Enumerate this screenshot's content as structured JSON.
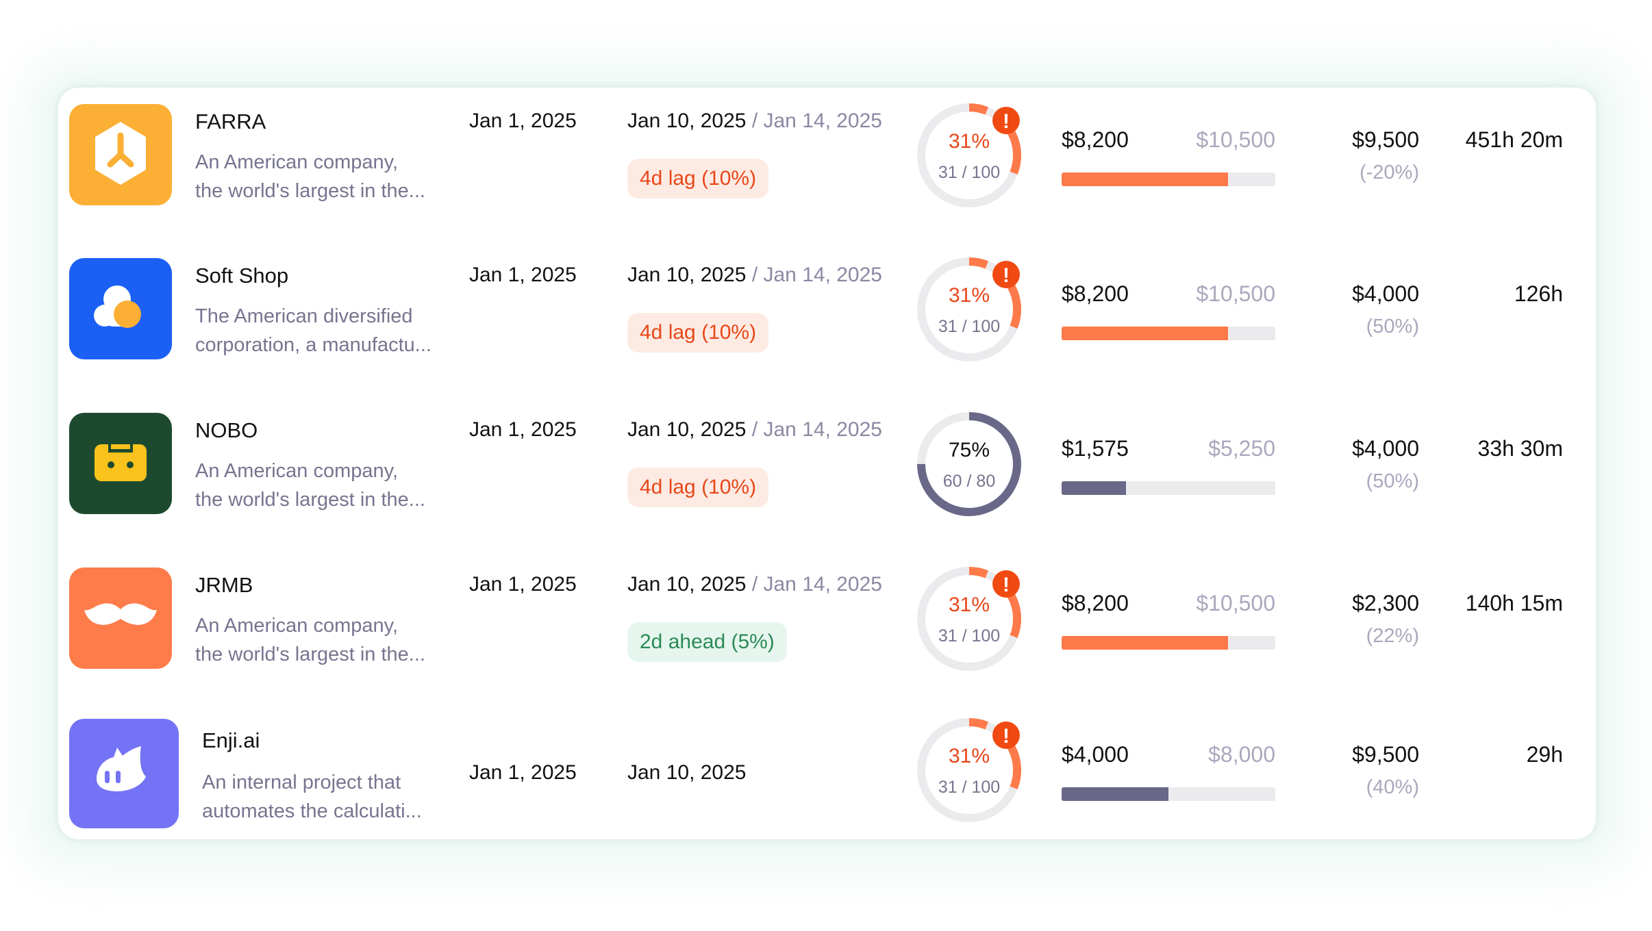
{
  "colors": {
    "warn": "#ff7a4a",
    "ok": "#6a6888",
    "track": "#ebebee",
    "alert": "#f04a12"
  },
  "rows": [
    {
      "name": "FARRA",
      "desc": [
        "An American company,",
        "the world's largest in the..."
      ],
      "logo_color": "#fcaf35",
      "icon": "hexagon-icon",
      "start": "Jan 1, 2025",
      "due": "Jan 10, 2025",
      "due_sep": " / ",
      "planned": "Jan 14, 2025",
      "badge": "4d lag (10%)",
      "badge_type": "lag",
      "progress_pct": "31%",
      "progress_count": "31 / 100",
      "progress": 0.31,
      "alert": true,
      "alert_glyph": "!",
      "spent": "$8,200",
      "budget": "$10,500",
      "spent_fraction": 0.78,
      "amount": "$9,500",
      "amount_pct": "(-20%)",
      "time": "451h 20m"
    },
    {
      "name": "Soft Shop",
      "desc": [
        "The American diversified",
        "corporation, a manufactu..."
      ],
      "logo_color": "#1c5ff5",
      "icon": "cloud-icon",
      "start": "Jan 1, 2025",
      "due": "Jan 10, 2025",
      "due_sep": " / ",
      "planned": "Jan 14, 2025",
      "badge": "4d lag (10%)",
      "badge_type": "lag",
      "progress_pct": "31%",
      "progress_count": "31 / 100",
      "progress": 0.31,
      "alert": true,
      "alert_glyph": "!",
      "spent": "$8,200",
      "budget": "$10,500",
      "spent_fraction": 0.78,
      "amount": "$4,000",
      "amount_pct": "(50%)",
      "time": "126h"
    },
    {
      "name": "NOBO",
      "desc": [
        "An American company,",
        "the world's largest in the..."
      ],
      "logo_color": "#1d4a2e",
      "icon": "cassette-icon",
      "start": "Jan 1, 2025",
      "due": "Jan 10, 2025",
      "due_sep": " / ",
      "planned": "Jan 14, 2025",
      "badge": "4d lag (10%)",
      "badge_type": "lag",
      "progress_pct": "75%",
      "progress_count": "60 / 80",
      "progress": 0.75,
      "alert": false,
      "spent": "$1,575",
      "budget": "$5,250",
      "spent_fraction": 0.3,
      "amount": "$4,000",
      "amount_pct": "(50%)",
      "time": "33h 30m"
    },
    {
      "name": "JRMB",
      "desc": [
        "An American company,",
        "the world's largest in the..."
      ],
      "logo_color": "#fe7b4a",
      "icon": "mustache-icon",
      "start": "Jan 1, 2025",
      "due": "Jan 10, 2025",
      "due_sep": " / ",
      "planned": "Jan 14, 2025",
      "badge": "2d ahead (5%)",
      "badge_type": "ahead",
      "progress_pct": "31%",
      "progress_count": "31 / 100",
      "progress": 0.31,
      "alert": true,
      "alert_glyph": "!",
      "spent": "$8,200",
      "budget": "$10,500",
      "spent_fraction": 0.78,
      "amount": "$2,300",
      "amount_pct": "(22%)",
      "time": "140h 15m"
    },
    {
      "name": "Enji.ai",
      "desc": [
        "An internal project that",
        "automates the calculati..."
      ],
      "logo_color": "#7473f5",
      "icon": "cat-icon",
      "start": "Jan 1, 2025",
      "due": "Jan 10, 2025",
      "progress_pct": "31%",
      "progress_count": "31 / 100",
      "progress": 0.31,
      "alert": true,
      "alert_glyph": "!",
      "spent": "$4,000",
      "budget": "$8,000",
      "spent_fraction": 0.5,
      "amount": "$9,500",
      "amount_pct": "(40%)",
      "time": "29h"
    }
  ]
}
